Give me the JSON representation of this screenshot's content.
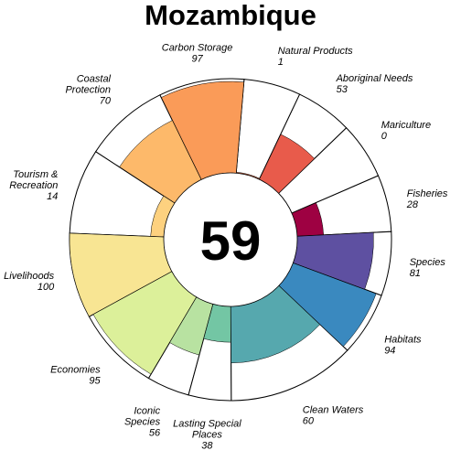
{
  "chart_data": {
    "type": "flower",
    "title": "Mozambique",
    "overall_score": 59,
    "ylim": [
      0,
      100
    ],
    "petals": [
      {
        "name": "Fisheries",
        "label_lines": [
          "Fisheries"
        ],
        "value": 28,
        "weight": 1,
        "color": "#9E0142"
      },
      {
        "name": "Mariculture",
        "label_lines": [
          "Mariculture"
        ],
        "value": 0,
        "weight": 1,
        "color": "#D53E4F"
      },
      {
        "name": "Aboriginal Needs",
        "label_lines": [
          "Aboriginal Needs"
        ],
        "value": 53,
        "weight": 1,
        "color": "#E85B4B"
      },
      {
        "name": "Natural Products",
        "label_lines": [
          "Natural Products"
        ],
        "value": 1,
        "weight": 1,
        "color": "#F46D43"
      },
      {
        "name": "Carbon Storage",
        "label_lines": [
          "Carbon Storage"
        ],
        "value": 97,
        "weight": 1.5,
        "color": "#FA9B58"
      },
      {
        "name": "Coastal Protection",
        "label_lines": [
          "Coastal",
          "Protection"
        ],
        "value": 70,
        "weight": 1.5,
        "color": "#FDB96A"
      },
      {
        "name": "Tourism & Recreation",
        "label_lines": [
          "Tourism &",
          "Recreation"
        ],
        "value": 14,
        "weight": 1.5,
        "color": "#FDD17F"
      },
      {
        "name": "Livelihoods",
        "label_lines": [
          "Livelihoods"
        ],
        "value": 100,
        "weight": 1.5,
        "color": "#F8E593"
      },
      {
        "name": "Economies",
        "label_lines": [
          "Economies"
        ],
        "value": 95,
        "weight": 1.5,
        "color": "#DCF09A"
      },
      {
        "name": "Iconic Species",
        "label_lines": [
          "Iconic",
          "Species"
        ],
        "value": 56,
        "weight": 0.75,
        "color": "#B8E2A1"
      },
      {
        "name": "Lasting Special Places",
        "label_lines": [
          "Lasting Special",
          "Places"
        ],
        "value": 38,
        "weight": 0.75,
        "color": "#73C6A4"
      },
      {
        "name": "Clean Waters",
        "label_lines": [
          "Clean Waters"
        ],
        "value": 60,
        "weight": 2.25,
        "color": "#56A8AE"
      },
      {
        "name": "Habitats",
        "label_lines": [
          "Habitats"
        ],
        "value": 94,
        "weight": 1.125,
        "color": "#3A89BF"
      },
      {
        "name": "Species",
        "label_lines": [
          "Species"
        ],
        "value": 81,
        "weight": 1.125,
        "color": "#5E50A1"
      }
    ]
  }
}
